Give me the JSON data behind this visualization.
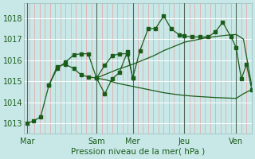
{
  "background_color": "#c8e8e8",
  "grid_color": "#ffffff",
  "minor_grid_color": "#e8a0a0",
  "vline_color": "#556655",
  "line_color": "#1a5c1a",
  "xlabel": "Pression niveau de la mer( hPa )",
  "ylim": [
    1012.5,
    1018.7
  ],
  "yticks": [
    1013,
    1014,
    1015,
    1016,
    1017,
    1018
  ],
  "day_labels": [
    "Mar",
    "Sam",
    "Mer",
    "Jeu",
    "Ven"
  ],
  "xlim": [
    0,
    22
  ],
  "day_x": [
    0.3,
    7.0,
    10.5,
    15.5,
    20.5
  ],
  "vline_x": [
    0.3,
    7.0,
    10.5,
    15.5,
    20.5
  ],
  "s1_x": [
    0.3,
    0.9,
    1.6,
    2.4,
    3.2,
    4.0,
    4.8,
    5.5,
    6.2,
    7.0,
    7.8,
    8.5,
    9.2,
    10.0,
    10.5,
    11.2,
    12.0,
    12.7,
    13.5,
    14.2,
    15.0,
    15.5,
    16.2,
    17.0,
    17.8,
    18.5,
    19.2,
    20.0,
    20.5,
    21.0,
    21.5,
    22.0
  ],
  "s1_y": [
    1013.0,
    1013.1,
    1013.3,
    1014.8,
    1015.7,
    1015.8,
    1015.6,
    1015.3,
    1015.2,
    1015.15,
    1015.75,
    1016.2,
    1016.3,
    1016.3,
    1015.15,
    1016.45,
    1017.5,
    1017.5,
    1018.1,
    1017.5,
    1017.2,
    1017.15,
    1017.1,
    1017.1,
    1017.1,
    1017.35,
    1017.8,
    1017.1,
    1016.6,
    1015.1,
    1015.8,
    1014.6
  ],
  "s2_x": [
    2.4,
    3.2,
    4.0,
    4.8,
    5.5,
    6.2,
    7.0,
    7.8,
    8.5,
    9.2,
    10.0,
    10.5
  ],
  "s2_y": [
    1014.8,
    1015.6,
    1015.9,
    1016.25,
    1016.3,
    1016.3,
    1015.15,
    1014.4,
    1015.1,
    1015.4,
    1016.4,
    1015.15
  ],
  "s3_x": [
    7.0,
    8.0,
    9.0,
    10.5,
    11.5,
    12.5,
    13.5,
    14.5,
    15.5,
    16.5,
    17.5,
    18.5,
    19.5,
    20.5,
    21.2,
    22.0
  ],
  "s3_y": [
    1015.15,
    1015.35,
    1015.55,
    1015.8,
    1016.0,
    1016.2,
    1016.45,
    1016.65,
    1016.85,
    1016.95,
    1017.05,
    1017.12,
    1017.18,
    1017.22,
    1017.0,
    1014.8
  ],
  "s4_x": [
    7.0,
    8.0,
    9.0,
    10.5,
    11.5,
    12.5,
    13.5,
    14.5,
    15.5,
    16.5,
    17.5,
    18.5,
    19.5,
    20.5,
    21.2,
    22.0
  ],
  "s4_y": [
    1015.15,
    1015.05,
    1014.9,
    1014.75,
    1014.65,
    1014.55,
    1014.45,
    1014.38,
    1014.32,
    1014.28,
    1014.25,
    1014.22,
    1014.2,
    1014.18,
    1014.4,
    1014.6
  ]
}
